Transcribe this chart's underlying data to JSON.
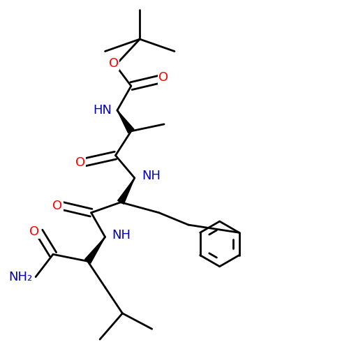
{
  "bg": "#ffffff",
  "bond_color": "#000000",
  "O_color": "#ff0000",
  "N_color": "#0000bb",
  "lw": 2.0,
  "lw_wedge": 3.5,
  "fs": 13,
  "figsize": [
    5.0,
    5.0
  ],
  "dpi": 100,
  "xlim": [
    0,
    10
  ],
  "ylim": [
    0,
    10
  ]
}
